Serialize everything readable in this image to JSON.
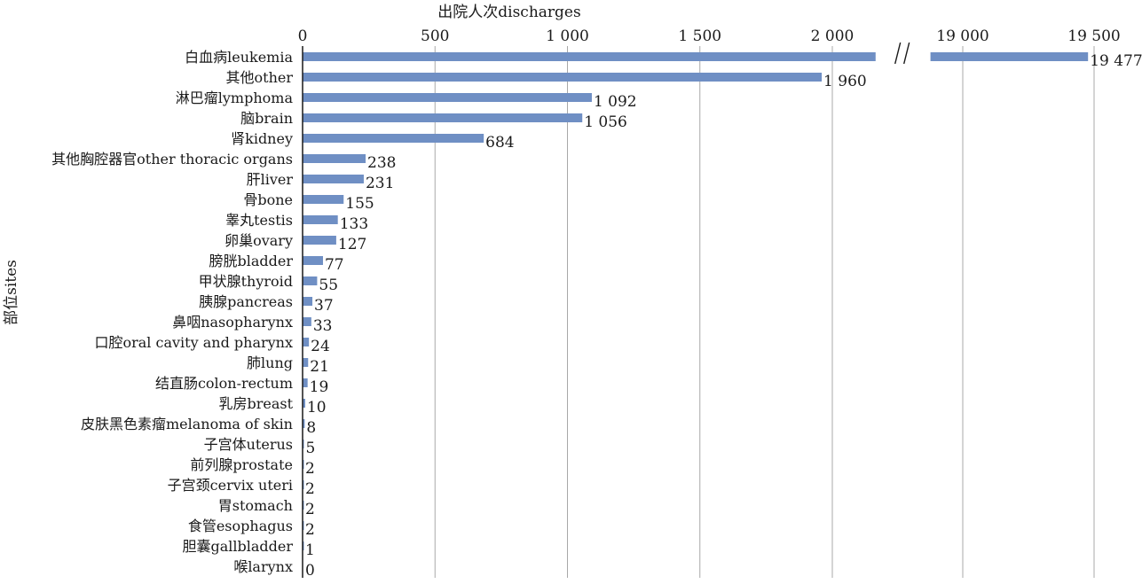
{
  "chart_data": {
    "type": "bar",
    "orientation": "horizontal",
    "title": "",
    "xlabel": "出院人次discharges",
    "ylabel": "部位sites",
    "axis_break": {
      "from": 2150,
      "to": 18850
    },
    "xlim": [
      0,
      19700
    ],
    "xticks": [
      0,
      500,
      1000,
      1500,
      2000,
      19000,
      19500
    ],
    "xtick_labels": [
      "0",
      "500",
      "1 000",
      "1 500",
      "2 000",
      "19 000",
      "19 500"
    ],
    "grid": true,
    "bar_color": "#6f8fc4",
    "categories": [
      "白血病leukemia",
      "其他other",
      "淋巴瘤lymphoma",
      "脑brain",
      "肾kidney",
      "其他胸腔器官other thoracic organs",
      "肝liver",
      "骨bone",
      "睾丸testis",
      "卵巢ovary",
      "膀胱bladder",
      "甲状腺thyroid",
      "胰腺pancreas",
      "鼻咽nasopharynx",
      "口腔oral cavity and pharynx",
      "肺lung",
      "结直肠colon-rectum",
      "乳房breast",
      "皮肤黑色素瘤melanoma of skin",
      "子宫体uterus",
      "前列腺prostate",
      "子宫颈cervix uteri",
      "胃stomach",
      "食管esophagus",
      "胆囊gallbladder",
      "喉larynx"
    ],
    "values": [
      19477,
      1960,
      1092,
      1056,
      684,
      238,
      231,
      155,
      133,
      127,
      77,
      55,
      37,
      33,
      24,
      21,
      19,
      10,
      8,
      5,
      2,
      2,
      2,
      2,
      1,
      0
    ],
    "value_labels": [
      "19 477",
      "1 960",
      "1 092",
      "1 056",
      "684",
      "238",
      "231",
      "155",
      "133",
      "127",
      "77",
      "55",
      "37",
      "33",
      "24",
      "21",
      "19",
      "10",
      "8",
      "5",
      "2",
      "2",
      "2",
      "2",
      "1",
      "0"
    ]
  }
}
